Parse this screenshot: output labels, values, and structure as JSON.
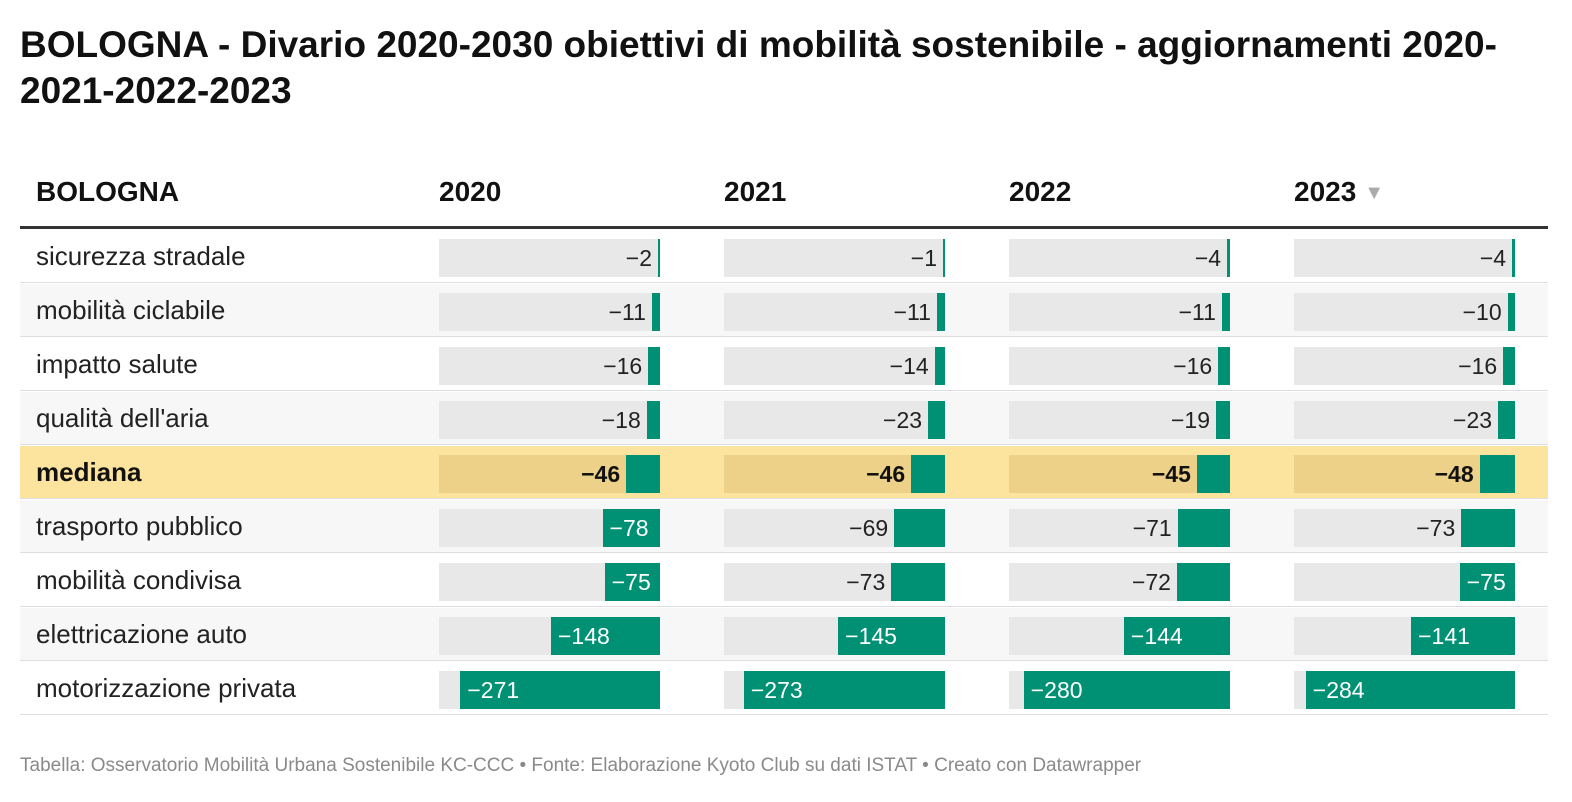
{
  "title": "BOLOGNA - Divario 2020-2030 obiettivi di mobilità sostenibile - aggiornamenti 2020-2021-2022-2023",
  "footer": "Tabella: Osservatorio Mobilità Urbana Sostenibile KC-CCC • Fonte: Elaborazione Kyoto Club su dati ISTAT • Creato con Datawrapper",
  "sort_icon": "▼",
  "colors": {
    "bar": "#009174",
    "track": "#e8e8e8",
    "highlight_row": "#fde49e",
    "highlight_track": "#edd189"
  },
  "chart_data": {
    "type": "table",
    "header": {
      "row_label": "BOLOGNA",
      "columns": [
        "2020",
        "2021",
        "2022",
        "2023"
      ]
    },
    "sorted_column": "2023",
    "scale_min": -300,
    "highlight_row": "mediana",
    "rows": [
      {
        "label": "sicurezza stradale",
        "values": [
          -2,
          -1,
          -4,
          -4
        ]
      },
      {
        "label": "mobilità ciclabile",
        "values": [
          -11,
          -11,
          -11,
          -10
        ]
      },
      {
        "label": "impatto salute",
        "values": [
          -16,
          -14,
          -16,
          -16
        ]
      },
      {
        "label": "qualità dell'aria",
        "values": [
          -18,
          -23,
          -19,
          -23
        ]
      },
      {
        "label": "mediana",
        "values": [
          -46,
          -46,
          -45,
          -48
        ]
      },
      {
        "label": "trasporto pubblico",
        "values": [
          -78,
          -69,
          -71,
          -73
        ]
      },
      {
        "label": "mobilità condivisa",
        "values": [
          -75,
          -73,
          -72,
          -75
        ]
      },
      {
        "label": "elettricazione auto",
        "values": [
          -148,
          -145,
          -144,
          -141
        ]
      },
      {
        "label": "motorizzazione privata",
        "values": [
          -271,
          -273,
          -280,
          -284
        ]
      }
    ]
  }
}
